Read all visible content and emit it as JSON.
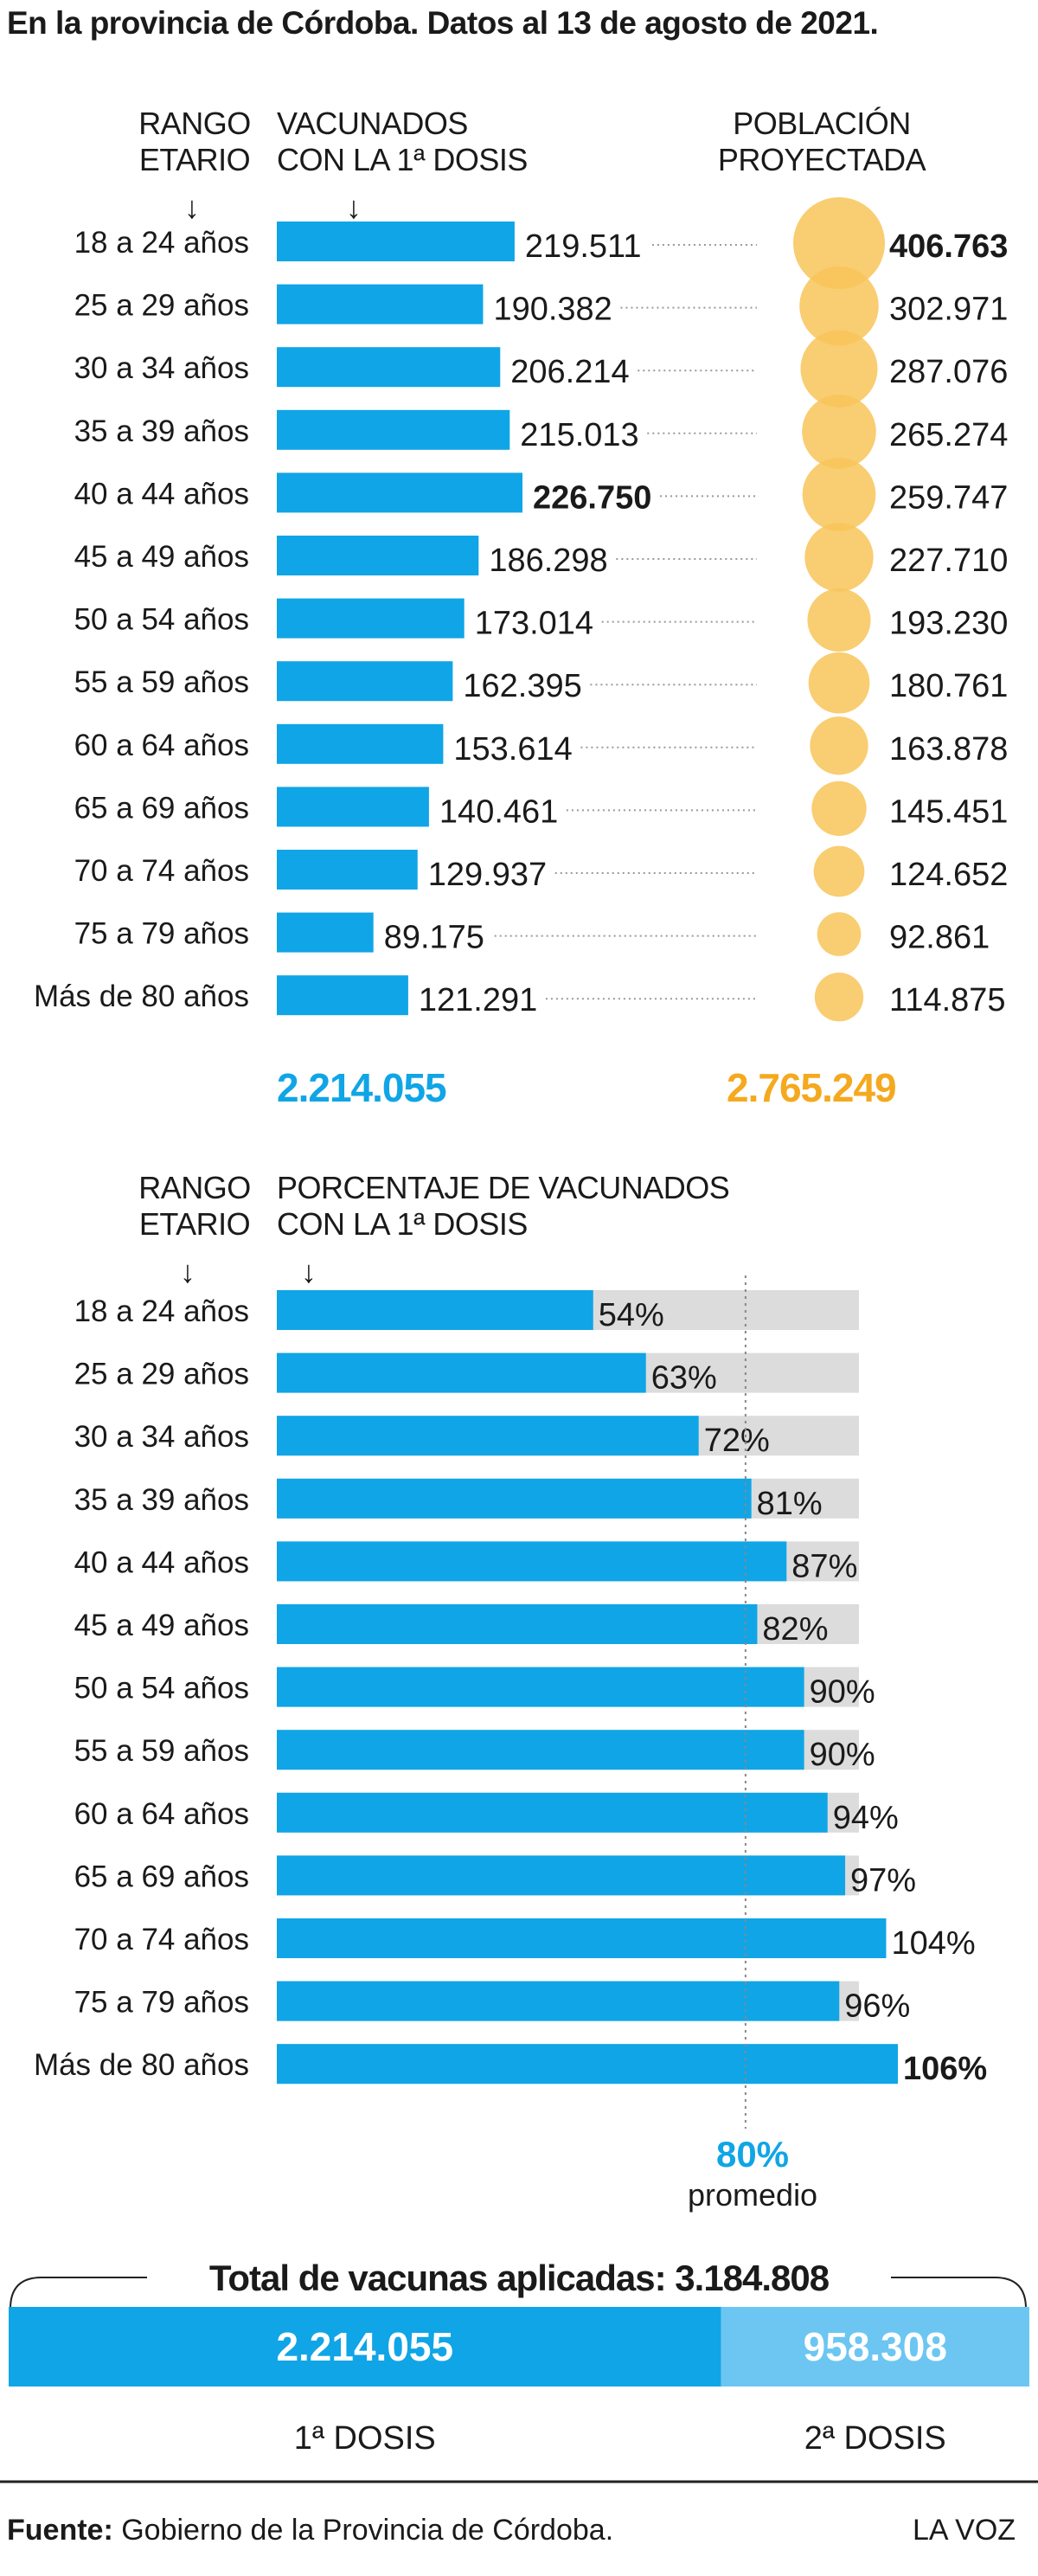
{
  "title": "En la provincia de Córdoba. Datos al 13 de agosto de 2021.",
  "colors": {
    "blue": "#10a5e6",
    "light_blue": "#6cc6f1",
    "orange": "#f8c458",
    "orange_text": "#f4a91e",
    "gray": "#dcdcdc",
    "text": "#1a1a1a"
  },
  "chart1": {
    "header_age": [
      "RANGO",
      "ETARIO"
    ],
    "header_vaccinated": [
      "VACUNADOS",
      "CON LA 1ª DOSIS"
    ],
    "header_population": [
      "POBLACIÓN",
      "PROYECTADA"
    ],
    "arrow": "↓",
    "total_vaccinated": "2.214.055",
    "total_population": "2.765.249"
  },
  "chart2": {
    "header_age": [
      "RANGO",
      "ETARIO"
    ],
    "header_percent": [
      "PORCENTAJE DE VACUNADOS",
      "CON LA 1ª DOSIS"
    ],
    "arrow": "↓",
    "average_value": "80%",
    "average_label": "promedio"
  },
  "chart_data": [
    {
      "type": "bar",
      "categories": [
        "18 a 24 años",
        "25 a 29 años",
        "30 a 34 años",
        "35 a 39 años",
        "40 a 44 años",
        "45 a 49 años",
        "50 a 54 años",
        "55 a 59 años",
        "60 a 64 años",
        "65 a 69 años",
        "70 a 74 años",
        "75 a 79  años",
        "Más de 80 años"
      ],
      "series": [
        {
          "name": "VACUNADOS CON LA 1ª DOSIS",
          "values": [
            219511,
            190382,
            206214,
            215013,
            226750,
            186298,
            173014,
            162395,
            153614,
            140461,
            129937,
            89175,
            121291
          ],
          "labels": [
            "219.511",
            "190.382",
            "206.214",
            "215.013",
            "226.750",
            "186.298",
            "173.014",
            "162.395",
            "153.614",
            "140.461",
            "129.937",
            "89.175",
            "121.291"
          ]
        },
        {
          "name": "POBLACIÓN PROYECTADA",
          "values": [
            406763,
            302971,
            287076,
            265274,
            259747,
            227710,
            193230,
            180761,
            163878,
            145451,
            124652,
            92861,
            114875
          ],
          "labels": [
            "406.763",
            "302.971",
            "287.076",
            "265.274",
            "259.747",
            "227.710",
            "193.230",
            "180.761",
            "163.878",
            "145.451",
            "124.652",
            "92.861",
            "114.875"
          ]
        }
      ],
      "bold_vaccinated_index": 4,
      "bold_population_index": 0
    },
    {
      "type": "bar",
      "categories": [
        "18 a 24 años",
        "25 a 29 años",
        "30 a 34 años",
        "35 a 39 años",
        "40 a 44 años",
        "45 a 49 años",
        "50 a 54 años",
        "55 a 59 años",
        "60 a 64 años",
        "65 a 69 años",
        "70 a 74 años",
        "75 a 79  años",
        "Más de 80 años"
      ],
      "values": [
        54,
        63,
        72,
        81,
        87,
        82,
        90,
        90,
        94,
        97,
        104,
        96,
        106
      ],
      "labels": [
        "54%",
        "63%",
        "72%",
        "81%",
        "87%",
        "82%",
        "90%",
        "90%",
        "94%",
        "97%",
        "104%",
        "96%",
        "106%"
      ],
      "average": 80,
      "bold_index": 12
    },
    {
      "type": "bar",
      "title": "Total de vacunas aplicadas: 3.184.808",
      "categories": [
        "1ª DOSIS",
        "2ª DOSIS"
      ],
      "values": [
        2214055,
        958308
      ],
      "labels": [
        "2.214.055",
        "958.308"
      ]
    }
  ],
  "footer": {
    "source_label": "Fuente:",
    "source_text": "Gobierno de la Provincia de Córdoba.",
    "brand": "LA VOZ"
  }
}
